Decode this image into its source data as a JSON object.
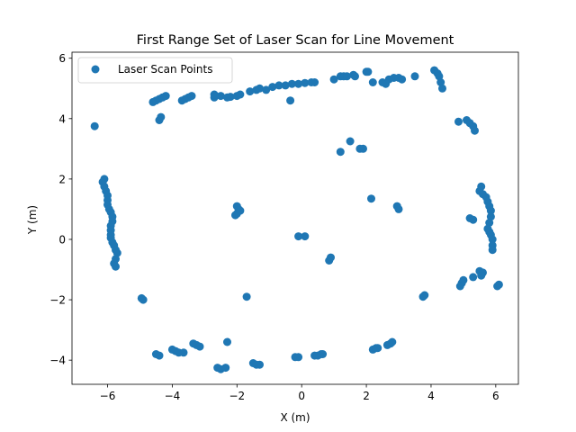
{
  "chart_data": {
    "type": "scatter",
    "title": "First Range Set of Laser Scan for Line Movement",
    "xlabel": "X (m)",
    "ylabel": "Y (m)",
    "xlim": [
      -7.1,
      6.7
    ],
    "ylim": [
      -4.8,
      6.2
    ],
    "xticks": [
      -6,
      -4,
      -2,
      0,
      2,
      4,
      6
    ],
    "yticks": [
      -4,
      -2,
      0,
      2,
      4,
      6
    ],
    "grid": false,
    "legend_position": "top-left",
    "marker_color": "#1f77b4",
    "series": [
      {
        "name": "Laser Scan Points",
        "points": [
          [
            -6.4,
            3.75
          ],
          [
            -4.6,
            4.55
          ],
          [
            -4.5,
            4.6
          ],
          [
            -4.4,
            4.65
          ],
          [
            -4.3,
            4.7
          ],
          [
            -4.2,
            4.75
          ],
          [
            -4.4,
            3.95
          ],
          [
            -4.35,
            4.05
          ],
          [
            -3.7,
            4.6
          ],
          [
            -3.6,
            4.65
          ],
          [
            -3.5,
            4.7
          ],
          [
            -3.4,
            4.75
          ],
          [
            -2.7,
            4.7
          ],
          [
            -2.7,
            4.8
          ],
          [
            -2.5,
            4.75
          ],
          [
            -2.3,
            4.7
          ],
          [
            -2.2,
            4.72
          ],
          [
            -2.0,
            4.75
          ],
          [
            -1.9,
            4.8
          ],
          [
            -1.6,
            4.9
          ],
          [
            -1.4,
            4.95
          ],
          [
            -1.3,
            5.0
          ],
          [
            -1.1,
            4.95
          ],
          [
            -0.9,
            5.05
          ],
          [
            -0.7,
            5.1
          ],
          [
            -0.5,
            5.1
          ],
          [
            -0.3,
            5.15
          ],
          [
            -0.1,
            5.15
          ],
          [
            0.1,
            5.18
          ],
          [
            0.3,
            5.2
          ],
          [
            0.4,
            5.2
          ],
          [
            -0.35,
            4.6
          ],
          [
            1.0,
            5.3
          ],
          [
            1.2,
            5.4
          ],
          [
            1.3,
            5.4
          ],
          [
            1.4,
            5.4
          ],
          [
            1.6,
            5.45
          ],
          [
            1.65,
            5.4
          ],
          [
            2.0,
            5.55
          ],
          [
            2.05,
            5.55
          ],
          [
            2.2,
            5.2
          ],
          [
            2.5,
            5.2
          ],
          [
            2.6,
            5.15
          ],
          [
            2.7,
            5.3
          ],
          [
            2.85,
            5.35
          ],
          [
            3.0,
            5.35
          ],
          [
            3.1,
            5.3
          ],
          [
            3.5,
            5.4
          ],
          [
            4.1,
            5.6
          ],
          [
            4.2,
            5.5
          ],
          [
            4.25,
            5.4
          ],
          [
            4.3,
            5.2
          ],
          [
            4.35,
            5.0
          ],
          [
            4.85,
            3.9
          ],
          [
            5.1,
            3.95
          ],
          [
            5.2,
            3.85
          ],
          [
            5.3,
            3.75
          ],
          [
            5.35,
            3.6
          ],
          [
            1.2,
            2.9
          ],
          [
            1.5,
            3.25
          ],
          [
            1.8,
            3.0
          ],
          [
            1.9,
            3.0
          ],
          [
            -6.1,
            2.0
          ],
          [
            -6.15,
            1.9
          ],
          [
            -6.1,
            1.75
          ],
          [
            -6.05,
            1.6
          ],
          [
            -6.0,
            1.45
          ],
          [
            -6.0,
            1.3
          ],
          [
            -6.0,
            1.15
          ],
          [
            -5.95,
            1.0
          ],
          [
            -5.9,
            0.9
          ],
          [
            -5.85,
            0.75
          ],
          [
            -5.85,
            0.6
          ],
          [
            -5.9,
            0.45
          ],
          [
            -5.9,
            0.3
          ],
          [
            -5.9,
            0.15
          ],
          [
            -5.9,
            0.05
          ],
          [
            -5.85,
            -0.1
          ],
          [
            -5.8,
            -0.2
          ],
          [
            -5.75,
            -0.35
          ],
          [
            -5.7,
            -0.45
          ],
          [
            -5.75,
            -0.65
          ],
          [
            -5.8,
            -0.8
          ],
          [
            -5.75,
            -0.9
          ],
          [
            -4.95,
            -1.95
          ],
          [
            -4.9,
            -2.0
          ],
          [
            -2.05,
            0.8
          ],
          [
            -2.0,
            0.85
          ],
          [
            -2.0,
            1.1
          ],
          [
            -1.95,
            1.0
          ],
          [
            -1.9,
            0.95
          ],
          [
            -1.7,
            -1.9
          ],
          [
            -0.1,
            0.1
          ],
          [
            0.1,
            0.1
          ],
          [
            0.85,
            -0.7
          ],
          [
            0.9,
            -0.6
          ],
          [
            2.15,
            1.35
          ],
          [
            2.95,
            1.1
          ],
          [
            3.0,
            1.0
          ],
          [
            3.8,
            -1.85
          ],
          [
            3.75,
            -1.9
          ],
          [
            5.55,
            1.75
          ],
          [
            5.5,
            1.6
          ],
          [
            5.6,
            1.5
          ],
          [
            5.7,
            1.4
          ],
          [
            5.75,
            1.25
          ],
          [
            5.8,
            1.1
          ],
          [
            5.85,
            0.95
          ],
          [
            5.85,
            0.75
          ],
          [
            5.8,
            0.55
          ],
          [
            5.75,
            0.35
          ],
          [
            5.8,
            0.25
          ],
          [
            5.85,
            0.15
          ],
          [
            5.9,
            0.0
          ],
          [
            5.9,
            -0.2
          ],
          [
            5.9,
            -0.35
          ],
          [
            5.2,
            0.7
          ],
          [
            5.3,
            0.65
          ],
          [
            5.5,
            -1.05
          ],
          [
            5.6,
            -1.1
          ],
          [
            5.55,
            -1.2
          ],
          [
            5.3,
            -1.25
          ],
          [
            5.0,
            -1.35
          ],
          [
            4.95,
            -1.45
          ],
          [
            4.9,
            -1.55
          ],
          [
            6.1,
            -1.5
          ],
          [
            6.05,
            -1.55
          ],
          [
            -4.5,
            -3.8
          ],
          [
            -4.4,
            -3.85
          ],
          [
            -4.0,
            -3.65
          ],
          [
            -3.9,
            -3.7
          ],
          [
            -3.8,
            -3.75
          ],
          [
            -3.65,
            -3.75
          ],
          [
            -3.35,
            -3.45
          ],
          [
            -3.25,
            -3.5
          ],
          [
            -3.15,
            -3.55
          ],
          [
            -2.6,
            -4.25
          ],
          [
            -2.5,
            -4.3
          ],
          [
            -2.35,
            -4.25
          ],
          [
            -2.3,
            -3.4
          ],
          [
            -1.5,
            -4.1
          ],
          [
            -1.4,
            -4.15
          ],
          [
            -1.3,
            -4.15
          ],
          [
            -0.2,
            -3.9
          ],
          [
            -0.1,
            -3.9
          ],
          [
            0.4,
            -3.85
          ],
          [
            0.5,
            -3.85
          ],
          [
            0.6,
            -3.8
          ],
          [
            0.65,
            -3.8
          ],
          [
            2.2,
            -3.65
          ],
          [
            2.3,
            -3.6
          ],
          [
            2.35,
            -3.6
          ],
          [
            2.65,
            -3.5
          ],
          [
            2.75,
            -3.45
          ],
          [
            2.8,
            -3.4
          ]
        ]
      }
    ]
  }
}
